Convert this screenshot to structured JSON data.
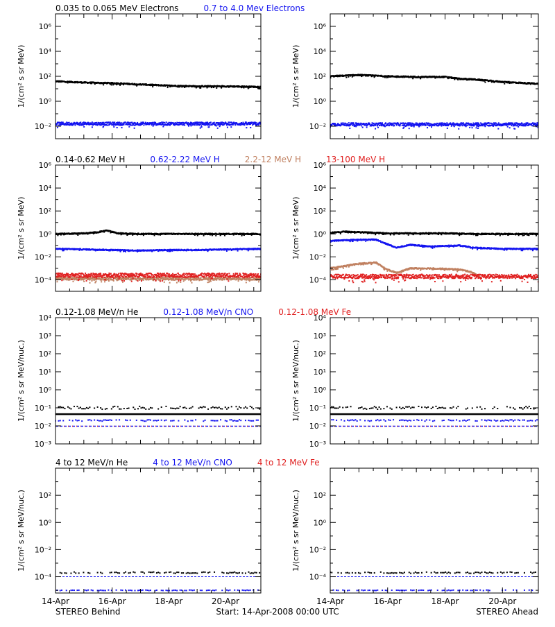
{
  "figure": {
    "left_label": "STEREO Behind",
    "right_label": "STEREO Ahead",
    "start_label": "Start: 14-Apr-2008 00:00 UTC",
    "x_ticks": [
      "14-Apr",
      "16-Apr",
      "18-Apr",
      "20-Apr"
    ],
    "x_tick_days": [
      14,
      16,
      18,
      20
    ],
    "x_range_days": [
      14,
      21.25
    ],
    "minor_tick_step_days": 0.5
  },
  "colors": {
    "black": "#000000",
    "blue": "#1414f0",
    "tan": "#c08060",
    "red": "#e02020"
  },
  "chart_data": [
    {
      "type": "scatter",
      "panel": "electrons",
      "ylabel": "1/(cm² s sr MeV)",
      "ylog": true,
      "ylim_exp": [
        -3,
        7
      ],
      "y_tick_exps": [
        -2,
        0,
        2,
        4,
        6
      ],
      "title_entries": [
        {
          "text": "0.035 to 0.065 MeV Electrons",
          "color": "black"
        },
        {
          "text": "0.7 to 4.0 Mev Electrons",
          "color": "blue"
        }
      ],
      "behind": {
        "series": [
          {
            "color": "black",
            "x": [
              14,
              15,
              16,
              17,
              18,
              19,
              20,
              21.25
            ],
            "log10y": [
              1.6,
              1.5,
              1.45,
              1.35,
              1.25,
              1.2,
              1.2,
              1.15
            ],
            "scatter": 0.05
          },
          {
            "color": "blue",
            "x": [
              14,
              21.25
            ],
            "log10y": [
              -1.8,
              -1.8
            ],
            "scatter": 0.12
          }
        ]
      },
      "ahead": {
        "series": [
          {
            "color": "black",
            "x": [
              14,
              14.5,
              15,
              16,
              17,
              18,
              18.5,
              19,
              20,
              21.25
            ],
            "log10y": [
              2.0,
              2.05,
              2.1,
              2.0,
              1.95,
              1.95,
              1.8,
              1.75,
              1.55,
              1.4
            ],
            "scatter": 0.05
          },
          {
            "color": "blue",
            "x": [
              14,
              21.25
            ],
            "log10y": [
              -1.85,
              -1.85
            ],
            "scatter": 0.12
          }
        ]
      }
    },
    {
      "type": "scatter",
      "panel": "protons",
      "ylabel": "1/(cm² s sr MeV)",
      "ylog": true,
      "ylim_exp": [
        -5,
        6
      ],
      "y_tick_exps": [
        -4,
        -2,
        0,
        2,
        4,
        6
      ],
      "title_entries": [
        {
          "text": "0.14-0.62 MeV H",
          "color": "black"
        },
        {
          "text": "0.62-2.22 MeV H",
          "color": "blue"
        },
        {
          "text": "2.2-12 MeV H",
          "color": "tan"
        },
        {
          "text": "13-100 MeV H",
          "color": "red"
        }
      ],
      "behind": {
        "series": [
          {
            "color": "black",
            "x": [
              14,
              15,
              15.5,
              15.8,
              16.2,
              17,
              18,
              19,
              20,
              21.25
            ],
            "log10y": [
              0.0,
              0.05,
              0.15,
              0.3,
              0.05,
              0.0,
              0.0,
              0.0,
              0.0,
              0.0
            ],
            "scatter": 0.05
          },
          {
            "color": "blue",
            "x": [
              14,
              15,
              16,
              17,
              18,
              19,
              20,
              21.25
            ],
            "log10y": [
              -1.3,
              -1.35,
              -1.4,
              -1.45,
              -1.4,
              -1.4,
              -1.35,
              -1.3
            ],
            "scatter": 0.05
          },
          {
            "color": "tan",
            "x": [
              14,
              21.25
            ],
            "log10y": [
              -3.9,
              -3.9
            ],
            "scatter": 0.12
          },
          {
            "color": "red",
            "x": [
              14,
              21.25
            ],
            "log10y": [
              -3.6,
              -3.6
            ],
            "scatter": 0.18
          }
        ]
      },
      "ahead": {
        "series": [
          {
            "color": "black",
            "x": [
              14,
              14.5,
              15,
              16,
              17,
              18,
              19,
              20,
              21.25
            ],
            "log10y": [
              0.1,
              0.2,
              0.15,
              0.05,
              0.05,
              0.05,
              0.0,
              0.0,
              0.0
            ],
            "scatter": 0.05
          },
          {
            "color": "blue",
            "x": [
              14,
              14.5,
              15,
              15.6,
              15.9,
              16.3,
              16.8,
              17.5,
              18.5,
              19,
              20,
              21.25
            ],
            "log10y": [
              -0.6,
              -0.55,
              -0.5,
              -0.5,
              -0.8,
              -1.2,
              -0.95,
              -1.1,
              -1.0,
              -1.2,
              -1.3,
              -1.3
            ],
            "scatter": 0.05
          },
          {
            "color": "tan",
            "x": [
              14,
              14.5,
              15,
              15.6,
              15.9,
              16.3,
              16.8,
              17.5,
              18.5,
              18.9,
              19.2
            ],
            "log10y": [
              -3.0,
              -2.8,
              -2.6,
              -2.5,
              -3.0,
              -3.4,
              -3.0,
              -3.0,
              -3.1,
              -3.3,
              -3.7
            ],
            "scatter": 0.06
          },
          {
            "color": "red",
            "x": [
              14,
              21.25
            ],
            "log10y": [
              -3.7,
              -3.7
            ],
            "scatter": 0.18
          }
        ]
      }
    },
    {
      "type": "scatter",
      "panel": "heavy-ions-low",
      "ylabel": "1/(cm² s sr MeV/nuc.)",
      "ylog": true,
      "ylim_exp": [
        -3,
        4
      ],
      "y_tick_exps": [
        -3,
        -2,
        -1,
        0,
        1,
        2,
        3,
        4
      ],
      "title_entries": [
        {
          "text": "0.12-1.08 MeV/n He",
          "color": "black"
        },
        {
          "text": "0.12-1.08 MeV/n CNO",
          "color": "blue"
        },
        {
          "text": "0.12-1.08 MeV Fe",
          "color": "red"
        }
      ],
      "behind": {
        "baselines": [
          {
            "color": "black",
            "log10y": -1.35,
            "width": 2.5
          },
          {
            "color": "blue",
            "log10y": -2.02,
            "width": 1.5,
            "dash": "4 2"
          },
          {
            "color": "red",
            "log10y": -2.02,
            "width": 1.5,
            "dash": "1 5"
          }
        ],
        "series": [
          {
            "color": "black",
            "x": [
              14,
              21.25
            ],
            "log10y": [
              -1.0,
              -1.0
            ],
            "scatter": 0.08,
            "sparse": true
          },
          {
            "color": "blue",
            "x": [
              14,
              21.25
            ],
            "log10y": [
              -1.7,
              -1.7
            ],
            "scatter": 0.04,
            "sparse": true
          }
        ]
      },
      "ahead": {
        "baselines": [
          {
            "color": "black",
            "log10y": -1.35,
            "width": 2.5
          },
          {
            "color": "blue",
            "log10y": -2.02,
            "width": 1.5,
            "dash": "4 2"
          },
          {
            "color": "red",
            "log10y": -2.02,
            "width": 1.5,
            "dash": "1 5"
          }
        ],
        "series": [
          {
            "color": "black",
            "x": [
              14,
              21.25
            ],
            "log10y": [
              -1.0,
              -1.0
            ],
            "scatter": 0.08,
            "sparse": true
          },
          {
            "color": "blue",
            "x": [
              14,
              21.25
            ],
            "log10y": [
              -1.7,
              -1.7
            ],
            "scatter": 0.04,
            "sparse": true
          }
        ]
      }
    },
    {
      "type": "scatter",
      "panel": "heavy-ions-high",
      "ylabel": "1/(cm² s sr MeV/nuc.)",
      "ylog": true,
      "ylim_exp": [
        -5.2,
        4
      ],
      "y_tick_exps": [
        -4,
        -2,
        0,
        2
      ],
      "title_entries": [
        {
          "text": "4 to 12 MeV/n He",
          "color": "black"
        },
        {
          "text": "4 to 12 MeV/n CNO",
          "color": "blue"
        },
        {
          "text": "4 to 12 MeV Fe",
          "color": "red"
        }
      ],
      "behind": {
        "baselines": [
          {
            "color": "blue",
            "log10y": -4.0,
            "width": 1,
            "dash": "3 2"
          }
        ],
        "series": [
          {
            "color": "black",
            "x": [
              14,
              21.25
            ],
            "log10y": [
              -3.7,
              -3.7
            ],
            "scatter": 0.05,
            "sparse": true
          },
          {
            "color": "blue",
            "x": [
              14,
              21.25
            ],
            "log10y": [
              -5.0,
              -5.0
            ],
            "scatter": 0.02,
            "sparse": true
          }
        ]
      },
      "ahead": {
        "baselines": [
          {
            "color": "blue",
            "log10y": -4.0,
            "width": 1,
            "dash": "3 2"
          }
        ],
        "series": [
          {
            "color": "black",
            "x": [
              14,
              21.25
            ],
            "log10y": [
              -3.7,
              -3.7
            ],
            "scatter": 0.05,
            "sparse": true
          },
          {
            "color": "blue",
            "x": [
              14,
              21.25
            ],
            "log10y": [
              -5.0,
              -5.0
            ],
            "scatter": 0.02,
            "sparse": true
          }
        ]
      }
    }
  ]
}
